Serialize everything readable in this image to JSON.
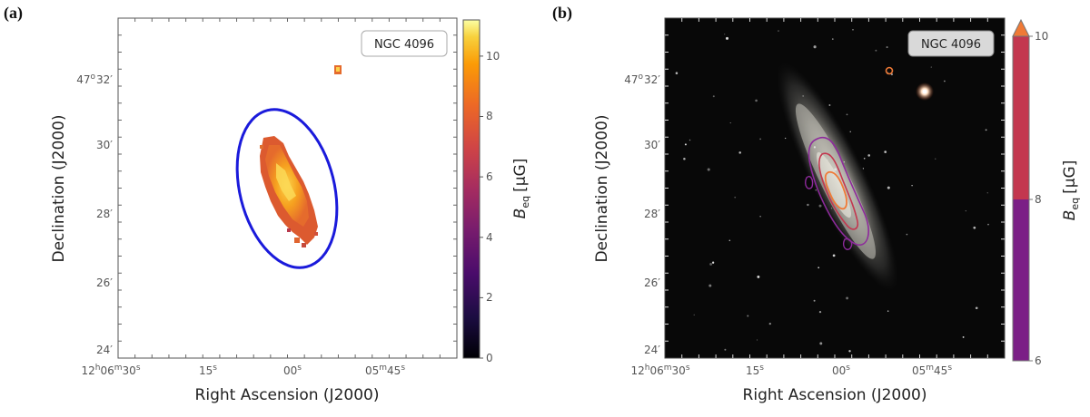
{
  "chart_data": [
    {
      "type": "heatmap",
      "panel_label": "(a)",
      "object_label": "NGC 4096",
      "xlabel": "Right Ascension (J2000)",
      "ylabel": "Declination (J2000)",
      "x_ticks": [
        {
          "h": "12",
          "hs": "h",
          "m": "06",
          "ms": "m",
          "s": "30",
          "ss": "s",
          "label": "12h06m30s"
        },
        {
          "s": "15",
          "ss": "s",
          "label": "15s"
        },
        {
          "s": "00",
          "ss": "s",
          "label": "00s"
        },
        {
          "m": "05",
          "ms": "m",
          "s": "45",
          "ss": "s",
          "label": "05m45s"
        }
      ],
      "y_ticks": [
        {
          "label": "47°32′",
          "d": "47",
          "m": "32"
        },
        {
          "label": "30′",
          "m": "30"
        },
        {
          "label": "28′",
          "m": "28"
        },
        {
          "label": "26′",
          "m": "26"
        },
        {
          "label": "24′",
          "m": "24"
        }
      ],
      "colorbar": {
        "label": "B_eq [µG]",
        "label_main": "B",
        "label_sub": "eq",
        "label_unit": "[µG]",
        "range": [
          0,
          11.2
        ],
        "ticks": [
          "0",
          "2",
          "4",
          "6",
          "8",
          "10"
        ],
        "colormap": "inferno"
      },
      "overlay": "blue ellipse outlining the galaxy region"
    },
    {
      "type": "heatmap",
      "panel_label": "(b)",
      "object_label": "NGC 4096",
      "xlabel": "Right Ascension (J2000)",
      "ylabel": "Declination (J2000)",
      "background": "optical image of the galaxy",
      "contours": "magnetic field strength contours",
      "x_ticks": [
        {
          "h": "12",
          "hs": "h",
          "m": "06",
          "ms": "m",
          "s": "30",
          "ss": "s",
          "label": "12h06m30s"
        },
        {
          "s": "15",
          "ss": "s",
          "label": "15s"
        },
        {
          "s": "00",
          "ss": "s",
          "label": "00s"
        },
        {
          "m": "05",
          "ms": "m",
          "s": "45",
          "ss": "s",
          "label": "05m45s"
        }
      ],
      "y_ticks": [
        {
          "label": "47°32′",
          "d": "47",
          "m": "32"
        },
        {
          "label": "30′",
          "m": "30"
        },
        {
          "label": "28′",
          "m": "28"
        },
        {
          "label": "26′",
          "m": "26"
        },
        {
          "label": "24′",
          "m": "24"
        }
      ],
      "colorbar": {
        "label": "B_eq [µG]",
        "label_main": "B",
        "label_sub": "eq",
        "label_unit": "[µG]",
        "range": [
          6,
          10
        ],
        "ticks": [
          "6",
          "8",
          "10"
        ],
        "levels": [
          {
            "from": 6,
            "to": 8,
            "color": "#7b1f86"
          },
          {
            "from": 8,
            "to": 10,
            "color": "#c3374f"
          },
          {
            "from": 10,
            "to": null,
            "color": "#f07a36"
          }
        ]
      }
    }
  ]
}
